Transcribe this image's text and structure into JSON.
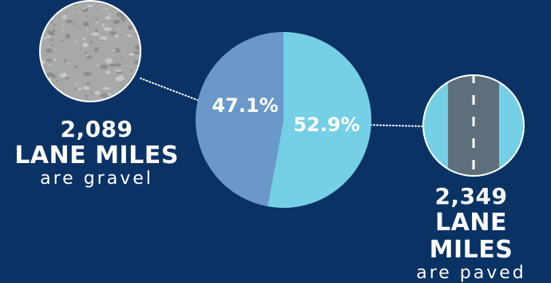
{
  "chart_data": {
    "type": "pie",
    "slices": [
      {
        "label": "47.1%",
        "value": 47.1,
        "color": "#6a98c8"
      },
      {
        "label": "52.9%",
        "value": 52.9,
        "color": "#75cfe6"
      }
    ]
  },
  "gravel": {
    "number": "2,089",
    "unit": "LANE MILES",
    "desc": "are gravel",
    "icon": "gravel-texture-icon"
  },
  "paved": {
    "number": "2,349",
    "unit": "LANE MILES",
    "desc": "are paved",
    "icon": "paved-road-icon"
  },
  "colors": {
    "background": "#0b3264",
    "gravel_slice": "#6a98c8",
    "paved_slice": "#75cfe6",
    "road": "#5e6f7c",
    "text": "#ffffff"
  }
}
